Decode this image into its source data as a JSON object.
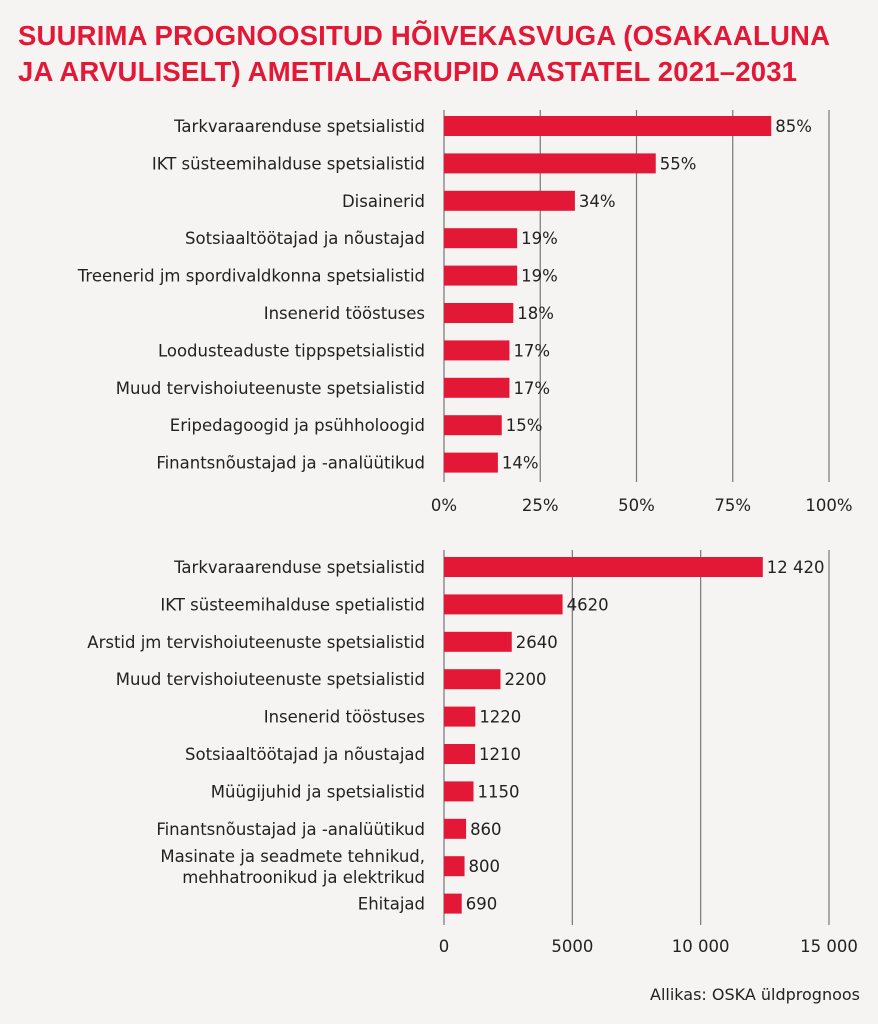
{
  "title_lines": [
    "SUURIMA PROGNOOSITUD HÕIVEKASVUGA (OSAKAALUNA",
    "JA ARVULISELT) AMETIALAGRUPID AASTATEL 2021–2031"
  ],
  "source": "Allikas: OSKA üldprognoos",
  "colors": {
    "bar": "#e31837",
    "title": "#e31837",
    "grid": "#777777",
    "background": "#f5f4f2"
  },
  "chart_data": [
    {
      "type": "bar",
      "orientation": "horizontal",
      "categories": [
        "Tarkvaraarenduse spetsialistid",
        "IKT süsteemihalduse spetsialistid",
        "Disainerid",
        "Sotsiaaltöötajad ja nõustajad",
        "Treenerid jm spordivaldkonna spetsialistid",
        "Insenerid tööstuses",
        "Loodusteaduste tippspetsialistid",
        "Muud tervishoiuteenuste spetsialistid",
        "Eripedagoogid ja psühholoogid",
        "Finantsnõustajad ja -analüütikud"
      ],
      "values": [
        85,
        55,
        34,
        19,
        19,
        18,
        17,
        17,
        15,
        14
      ],
      "value_labels": [
        "85%",
        "55%",
        "34%",
        "19%",
        "19%",
        "18%",
        "17%",
        "17%",
        "15%",
        "14%"
      ],
      "xlim": [
        0,
        100
      ],
      "ticks": [
        0,
        25,
        50,
        75,
        100
      ],
      "tick_labels": [
        "0%",
        "25%",
        "50%",
        "75%",
        "100%"
      ],
      "grid": true
    },
    {
      "type": "bar",
      "orientation": "horizontal",
      "categories": [
        "Tarkvaraarenduse spetsialistid",
        "IKT süsteemihalduse spetialistid",
        "Arstid jm tervishoiuteenuste spetsialistid",
        "Muud tervishoiuteenuste spetsialistid",
        "Insenerid tööstuses",
        "Sotsiaaltöötajad ja nõustajad",
        "Müügijuhid ja spetsialistid",
        "Finantsnõustajad ja -analüütikud",
        [
          "Masinate ja seadmete tehnikud,",
          "mehhatroonikud ja elektrikud"
        ],
        "Ehitajad"
      ],
      "values": [
        12420,
        4620,
        2640,
        2200,
        1220,
        1210,
        1150,
        860,
        800,
        690
      ],
      "value_labels": [
        "12 420",
        "4620",
        "2640",
        "2200",
        "1220",
        "1210",
        "1150",
        "860",
        "800",
        "690"
      ],
      "xlim": [
        0,
        15000
      ],
      "ticks": [
        0,
        5000,
        10000,
        15000
      ],
      "tick_labels": [
        "0",
        "5000",
        "10 000",
        "15 000"
      ],
      "grid": true
    }
  ]
}
